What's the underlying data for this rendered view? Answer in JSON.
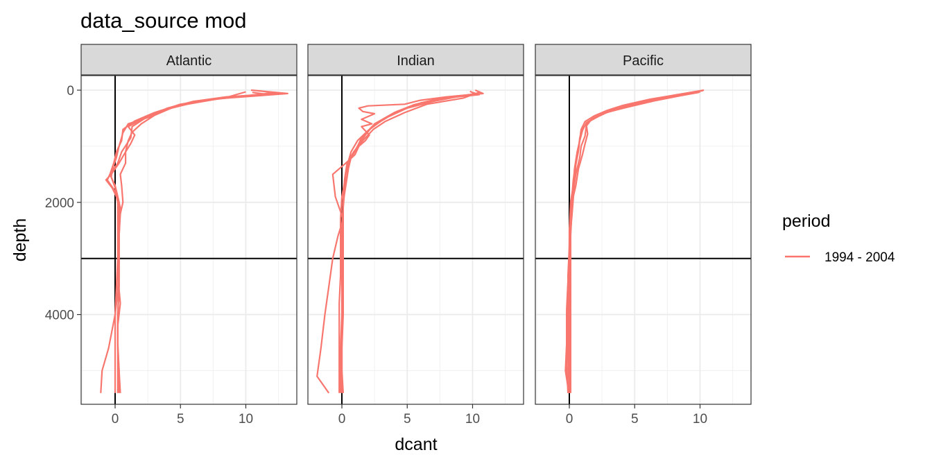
{
  "chart_data": {
    "type": "line",
    "title": "data_source mod",
    "xlabel": "dcant",
    "ylabel": "depth",
    "facets": [
      "Atlantic",
      "Indian",
      "Pacific"
    ],
    "xlim": [
      -2.6,
      13.9
    ],
    "ylim": [
      5600,
      -260
    ],
    "x_ticks": [
      0,
      5,
      10
    ],
    "y_ticks": [
      0,
      2000,
      4000
    ],
    "y_reversed": true,
    "reference_lines": {
      "vertical_x": 0,
      "horizontal_depth": 3000
    },
    "grid": true,
    "legend": {
      "title": "period",
      "position": "right",
      "entries": [
        {
          "label": "1994 - 2004",
          "color": "#F8766D"
        }
      ]
    },
    "series_color": "#F8766D",
    "profiles": {
      "Atlantic": [
        [
          [
            10.4,
            0
          ],
          [
            13.2,
            60
          ],
          [
            8,
            150
          ],
          [
            5.5,
            250
          ],
          [
            3.8,
            350
          ],
          [
            2.3,
            500
          ],
          [
            1.3,
            650
          ],
          [
            1.2,
            850
          ],
          [
            0.5,
            1100
          ],
          [
            0.2,
            1300
          ],
          [
            -0.4,
            1500
          ],
          [
            -0.6,
            1600
          ],
          [
            0,
            1800
          ],
          [
            0.2,
            2000
          ],
          [
            0.2,
            2500
          ],
          [
            0.2,
            3000
          ],
          [
            0.1,
            3500
          ],
          [
            0,
            4000
          ],
          [
            -0.5,
            4600
          ],
          [
            -1,
            5000
          ],
          [
            -1.1,
            5400
          ]
        ],
        [
          [
            11,
            10
          ],
          [
            12.5,
            60
          ],
          [
            8.5,
            120
          ],
          [
            6,
            200
          ],
          [
            4.5,
            300
          ],
          [
            3,
            450
          ],
          [
            2,
            600
          ],
          [
            1.3,
            750
          ],
          [
            1,
            900
          ],
          [
            0.8,
            1100
          ],
          [
            0.3,
            1300
          ],
          [
            -0.3,
            1500
          ],
          [
            -0.7,
            1600
          ],
          [
            -0.2,
            1750
          ],
          [
            0.3,
            2000
          ],
          [
            0.4,
            2200
          ],
          [
            0.3,
            2600
          ],
          [
            0.3,
            3000
          ],
          [
            0.3,
            3500
          ],
          [
            0.2,
            4000
          ],
          [
            0.2,
            4600
          ],
          [
            0.3,
            5000
          ],
          [
            0.4,
            5400
          ]
        ],
        [
          [
            10.5,
            40
          ],
          [
            11.8,
            80
          ],
          [
            8,
            140
          ],
          [
            5,
            250
          ],
          [
            3,
            400
          ],
          [
            1.5,
            550
          ],
          [
            0.6,
            700
          ],
          [
            0.5,
            900
          ],
          [
            0.1,
            1100
          ],
          [
            -0.1,
            1300
          ],
          [
            -0.4,
            1500
          ],
          [
            0,
            1700
          ],
          [
            0.3,
            2000
          ],
          [
            0.3,
            2500
          ],
          [
            0.3,
            3000
          ],
          [
            0.3,
            3500
          ],
          [
            0.2,
            4000
          ],
          [
            0.2,
            4500
          ],
          [
            0.3,
            5000
          ],
          [
            0.3,
            5400
          ]
        ],
        [
          [
            12,
            50
          ],
          [
            10,
            100
          ],
          [
            7,
            180
          ],
          [
            4.5,
            300
          ],
          [
            3,
            420
          ],
          [
            1.8,
            550
          ],
          [
            1,
            650
          ],
          [
            1.5,
            800
          ],
          [
            1.2,
            950
          ],
          [
            0.8,
            1100
          ],
          [
            0.8,
            1300
          ],
          [
            0.4,
            1500
          ],
          [
            0.5,
            1700
          ],
          [
            0.6,
            2000
          ],
          [
            0.3,
            2300
          ],
          [
            0.3,
            2800
          ],
          [
            0.2,
            3300
          ],
          [
            0.4,
            3800
          ],
          [
            0.2,
            4200
          ],
          [
            0.2,
            4800
          ],
          [
            0.2,
            5400
          ]
        ],
        [
          [
            10,
            30
          ],
          [
            8.5,
            130
          ],
          [
            6,
            200
          ],
          [
            4,
            320
          ],
          [
            2.6,
            480
          ],
          [
            1,
            600
          ],
          [
            0.6,
            760
          ],
          [
            0.3,
            1000
          ],
          [
            0.1,
            1200
          ],
          [
            -0.2,
            1400
          ],
          [
            -0.3,
            1550
          ],
          [
            0.1,
            1800
          ],
          [
            0.4,
            2100
          ],
          [
            0.3,
            2600
          ],
          [
            0.3,
            3100
          ],
          [
            0.2,
            3600
          ],
          [
            0,
            4000
          ],
          [
            0,
            4500
          ],
          [
            0,
            5000
          ],
          [
            0,
            5400
          ]
        ]
      ],
      "Indian": [
        [
          [
            10.2,
            0
          ],
          [
            10.8,
            60
          ],
          [
            8,
            120
          ],
          [
            6,
            180
          ],
          [
            4.8,
            250
          ],
          [
            2,
            280
          ],
          [
            1.3,
            320
          ],
          [
            1.6,
            380
          ],
          [
            2.5,
            420
          ],
          [
            1.5,
            520
          ],
          [
            2.3,
            600
          ],
          [
            1.5,
            650
          ],
          [
            2.1,
            800
          ],
          [
            1.8,
            900
          ],
          [
            1.3,
            1000
          ],
          [
            1,
            1150
          ],
          [
            0.3,
            1300
          ],
          [
            -0.7,
            1500
          ],
          [
            -0.5,
            1900
          ],
          [
            0.1,
            2300
          ],
          [
            -0.3,
            2600
          ],
          [
            -0.7,
            3000
          ],
          [
            -1,
            3500
          ],
          [
            -1.3,
            4000
          ],
          [
            -1.6,
            4600
          ],
          [
            -1.9,
            5100
          ],
          [
            -1,
            5400
          ]
        ],
        [
          [
            10,
            40
          ],
          [
            10.5,
            80
          ],
          [
            7.5,
            150
          ],
          [
            5.5,
            260
          ],
          [
            4,
            400
          ],
          [
            2.5,
            600
          ],
          [
            1.8,
            800
          ],
          [
            1.2,
            1000
          ],
          [
            0.7,
            1200
          ],
          [
            0.5,
            1400
          ],
          [
            0.3,
            1700
          ],
          [
            0.1,
            2000
          ],
          [
            0,
            2500
          ],
          [
            0,
            3000
          ],
          [
            0,
            3500
          ],
          [
            0,
            4000
          ],
          [
            -0.1,
            4600
          ],
          [
            -0.1,
            5000
          ],
          [
            -0.1,
            5400
          ]
        ],
        [
          [
            10.5,
            50
          ],
          [
            9,
            110
          ],
          [
            7,
            200
          ],
          [
            5,
            320
          ],
          [
            3.5,
            480
          ],
          [
            2.3,
            650
          ],
          [
            1.5,
            850
          ],
          [
            1.1,
            1050
          ],
          [
            0.6,
            1250
          ],
          [
            0.3,
            1500
          ],
          [
            0.2,
            1800
          ],
          [
            0.1,
            2100
          ],
          [
            0.1,
            2600
          ],
          [
            0.1,
            3100
          ],
          [
            0.1,
            3600
          ],
          [
            0,
            4200
          ],
          [
            0,
            4800
          ],
          [
            0,
            5400
          ]
        ],
        [
          [
            9.8,
            20
          ],
          [
            10.2,
            70
          ],
          [
            7.8,
            130
          ],
          [
            6,
            230
          ],
          [
            4.2,
            380
          ],
          [
            3,
            550
          ],
          [
            2,
            720
          ],
          [
            1.2,
            900
          ],
          [
            0.7,
            1100
          ],
          [
            0.4,
            1350
          ],
          [
            0.2,
            1650
          ],
          [
            0,
            1900
          ],
          [
            -0.1,
            2300
          ],
          [
            -0.1,
            2800
          ],
          [
            -0.1,
            3300
          ],
          [
            -0.2,
            3800
          ],
          [
            -0.2,
            4300
          ],
          [
            -0.2,
            4800
          ],
          [
            -0.2,
            5400
          ]
        ],
        [
          [
            10.6,
            30
          ],
          [
            9.3,
            140
          ],
          [
            6.5,
            250
          ],
          [
            4.8,
            400
          ],
          [
            3.3,
            560
          ],
          [
            2.4,
            700
          ],
          [
            1.6,
            900
          ],
          [
            0.9,
            1100
          ],
          [
            0.4,
            1300
          ],
          [
            0.2,
            1600
          ],
          [
            0.1,
            2000
          ],
          [
            0.1,
            2500
          ],
          [
            0.1,
            3000
          ],
          [
            0.1,
            3500
          ],
          [
            0.1,
            4000
          ],
          [
            0,
            4600
          ],
          [
            0,
            5000
          ],
          [
            0.1,
            5400
          ]
        ]
      ],
      "Pacific": [
        [
          [
            10.3,
            0
          ],
          [
            8,
            90
          ],
          [
            6,
            180
          ],
          [
            4.3,
            290
          ],
          [
            3,
            380
          ],
          [
            2,
            480
          ],
          [
            1.3,
            580
          ],
          [
            1,
            720
          ],
          [
            0.8,
            900
          ],
          [
            0.6,
            1100
          ],
          [
            0.4,
            1400
          ],
          [
            0.3,
            1700
          ],
          [
            0.1,
            2000
          ],
          [
            0,
            2500
          ],
          [
            0,
            3000
          ],
          [
            -0.1,
            3500
          ],
          [
            -0.2,
            4000
          ],
          [
            -0.2,
            4500
          ],
          [
            -0.3,
            5000
          ],
          [
            -0.1,
            5300
          ],
          [
            0,
            5400
          ]
        ],
        [
          [
            10,
            20
          ],
          [
            7.5,
            120
          ],
          [
            5.5,
            220
          ],
          [
            3.8,
            330
          ],
          [
            2.6,
            420
          ],
          [
            1.7,
            520
          ],
          [
            1.3,
            640
          ],
          [
            1.2,
            820
          ],
          [
            0.9,
            1000
          ],
          [
            0.8,
            1200
          ],
          [
            0.5,
            1500
          ],
          [
            0.3,
            1800
          ],
          [
            0.2,
            2100
          ],
          [
            0.1,
            2600
          ],
          [
            0.1,
            3100
          ],
          [
            0.1,
            3600
          ],
          [
            0.1,
            4200
          ],
          [
            0.1,
            4700
          ],
          [
            0.1,
            5100
          ],
          [
            0.1,
            5400
          ]
        ],
        [
          [
            9.9,
            40
          ],
          [
            8.5,
            100
          ],
          [
            6.5,
            190
          ],
          [
            4.5,
            300
          ],
          [
            2.8,
            400
          ],
          [
            1.8,
            500
          ],
          [
            1.3,
            610
          ],
          [
            1.4,
            780
          ],
          [
            1.2,
            960
          ],
          [
            1,
            1150
          ],
          [
            0.7,
            1400
          ],
          [
            0.5,
            1700
          ],
          [
            0.2,
            2000
          ],
          [
            0.1,
            2400
          ],
          [
            0,
            2800
          ],
          [
            -0.1,
            3300
          ],
          [
            -0.1,
            3800
          ],
          [
            -0.1,
            4300
          ],
          [
            -0.1,
            4800
          ],
          [
            0,
            5400
          ]
        ],
        [
          [
            10,
            30
          ],
          [
            7,
            150
          ],
          [
            4.8,
            250
          ],
          [
            3.2,
            360
          ],
          [
            2.3,
            460
          ],
          [
            1.5,
            560
          ],
          [
            1,
            680
          ],
          [
            0.8,
            850
          ],
          [
            0.7,
            1050
          ],
          [
            0.5,
            1300
          ],
          [
            0.3,
            1600
          ],
          [
            0.2,
            1900
          ],
          [
            0.1,
            2200
          ],
          [
            0,
            2700
          ],
          [
            0,
            3200
          ],
          [
            0,
            3700
          ],
          [
            0,
            4200
          ],
          [
            0,
            4700
          ],
          [
            0,
            5100
          ],
          [
            0,
            5400
          ]
        ],
        [
          [
            10.2,
            10
          ],
          [
            8.3,
            80
          ],
          [
            6.2,
            160
          ],
          [
            4.1,
            270
          ],
          [
            2.9,
            360
          ],
          [
            1.9,
            460
          ],
          [
            1.2,
            560
          ],
          [
            0.9,
            700
          ],
          [
            0.8,
            880
          ],
          [
            0.7,
            1080
          ],
          [
            0.5,
            1330
          ],
          [
            0.4,
            1630
          ],
          [
            0.3,
            1930
          ],
          [
            0.2,
            2230
          ],
          [
            0.1,
            2500
          ],
          [
            0,
            2900
          ],
          [
            -0.1,
            3400
          ],
          [
            -0.2,
            3900
          ],
          [
            -0.2,
            4400
          ],
          [
            -0.2,
            4900
          ],
          [
            -0.1,
            5400
          ]
        ]
      ]
    }
  }
}
